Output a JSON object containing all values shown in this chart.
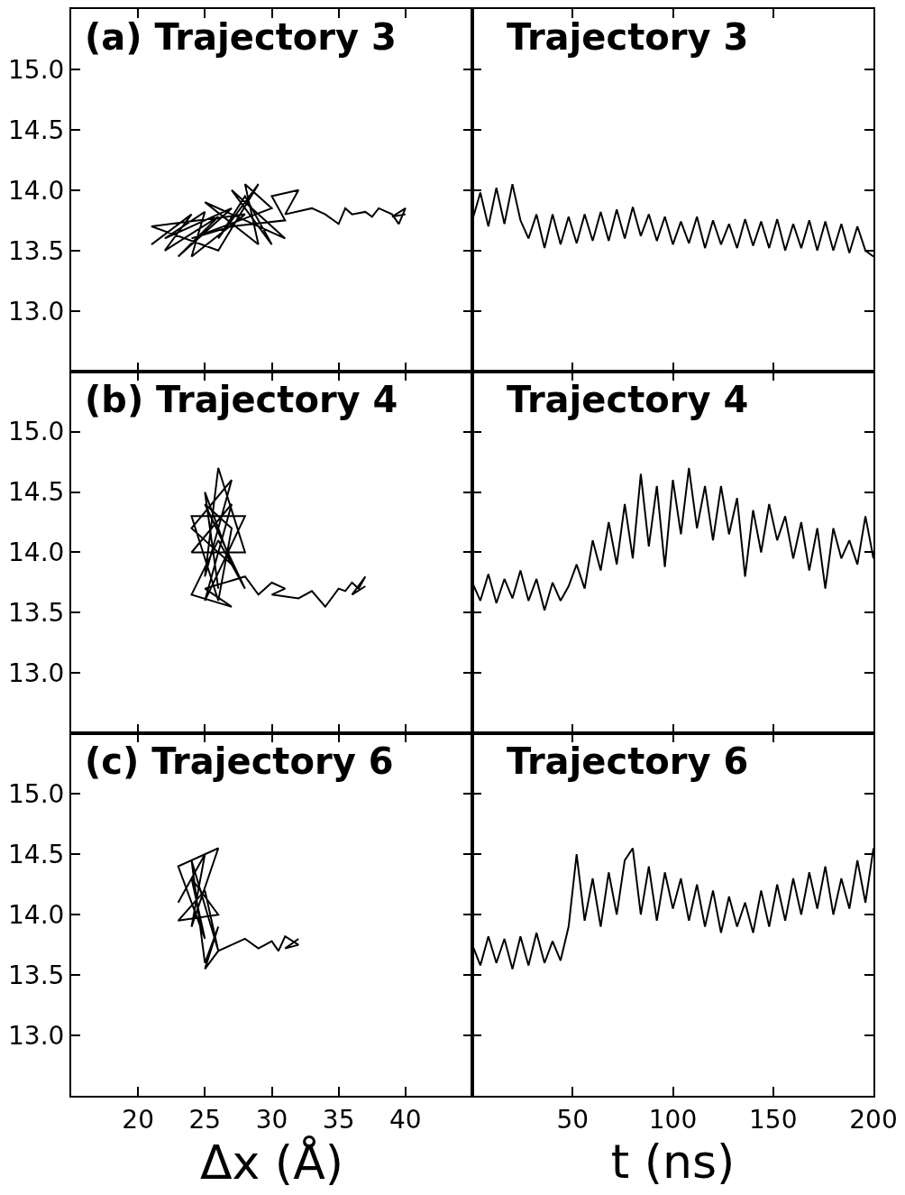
{
  "chart_data": [
    {
      "type": "line",
      "title": "(a) Trajectory 3",
      "color": "#000000",
      "xlim": [
        15,
        45
      ],
      "xticks": [
        {
          "value": 20,
          "label": null
        },
        {
          "value": 25,
          "label": null
        },
        {
          "value": 30,
          "label": null
        },
        {
          "value": 35,
          "label": null
        },
        {
          "value": 40,
          "label": null
        }
      ],
      "ylim": [
        12.5,
        15.5
      ],
      "yticks": [
        {
          "value": 13,
          "label": "13.0"
        },
        {
          "value": 13.5,
          "label": "13.5"
        },
        {
          "value": 14,
          "label": "14.0"
        },
        {
          "value": 14.5,
          "label": "14.5"
        },
        {
          "value": 15,
          "label": "15.0"
        }
      ],
      "tick_labels": "y",
      "x": [
        21,
        24,
        22,
        26,
        23,
        27,
        22,
        25,
        24,
        28,
        21,
        26,
        29,
        26,
        28,
        30,
        27,
        31,
        25,
        29,
        28,
        30,
        24,
        27,
        31,
        30,
        32,
        31,
        33,
        34,
        35,
        35.5,
        36,
        37,
        37.5,
        38,
        39,
        39.5,
        40,
        39,
        40
      ],
      "values": [
        13.55,
        13.8,
        13.5,
        13.78,
        13.45,
        13.85,
        13.6,
        13.82,
        13.45,
        13.8,
        13.7,
        13.5,
        14.05,
        13.6,
        13.95,
        13.55,
        14.0,
        13.6,
        13.9,
        13.55,
        14.05,
        13.85,
        13.6,
        13.7,
        13.75,
        13.95,
        14.0,
        13.8,
        13.85,
        13.8,
        13.72,
        13.85,
        13.8,
        13.82,
        13.78,
        13.85,
        13.8,
        13.72,
        13.85,
        13.78,
        13.8
      ]
    },
    {
      "type": "line",
      "title": "Trajectory 3",
      "color": "#000000",
      "xlim": [
        0,
        200
      ],
      "xticks": [
        {
          "value": 50,
          "label": null
        },
        {
          "value": 100,
          "label": null
        },
        {
          "value": 150,
          "label": null
        },
        {
          "value": 200,
          "label": null
        }
      ],
      "ylim": [
        12.5,
        15.5
      ],
      "yticks": [
        {
          "value": 13,
          "label": null
        },
        {
          "value": 13.5,
          "label": null
        },
        {
          "value": 14,
          "label": null
        },
        {
          "value": 14.5,
          "label": null
        },
        {
          "value": 15,
          "label": null
        }
      ],
      "tick_labels": false,
      "x": [
        0,
        4,
        8,
        12,
        16,
        20,
        24,
        28,
        32,
        36,
        40,
        44,
        48,
        52,
        56,
        60,
        64,
        68,
        72,
        76,
        80,
        84,
        88,
        92,
        96,
        100,
        104,
        108,
        112,
        116,
        120,
        124,
        128,
        132,
        136,
        140,
        144,
        148,
        152,
        156,
        160,
        164,
        168,
        172,
        176,
        180,
        184,
        188,
        192,
        196,
        200
      ],
      "values": [
        13.75,
        13.98,
        13.7,
        14.02,
        13.72,
        14.05,
        13.75,
        13.6,
        13.8,
        13.52,
        13.8,
        13.55,
        13.78,
        13.56,
        13.8,
        13.58,
        13.82,
        13.58,
        13.84,
        13.6,
        13.86,
        13.62,
        13.8,
        13.58,
        13.78,
        13.55,
        13.74,
        13.56,
        13.78,
        13.52,
        13.75,
        13.55,
        13.72,
        13.52,
        13.76,
        13.54,
        13.74,
        13.52,
        13.76,
        13.5,
        13.72,
        13.52,
        13.75,
        13.5,
        13.74,
        13.5,
        13.72,
        13.48,
        13.7,
        13.5,
        13.45
      ]
    },
    {
      "type": "line",
      "title": "(b) Trajectory 4",
      "color": "#000000",
      "xlim": [
        15,
        45
      ],
      "xticks": [
        {
          "value": 20,
          "label": null
        },
        {
          "value": 25,
          "label": null
        },
        {
          "value": 30,
          "label": null
        },
        {
          "value": 35,
          "label": null
        },
        {
          "value": 40,
          "label": null
        }
      ],
      "ylim": [
        12.5,
        15.5
      ],
      "yticks": [
        {
          "value": 13,
          "label": "13.0"
        },
        {
          "value": 13.5,
          "label": "13.5"
        },
        {
          "value": 14,
          "label": "14.0"
        },
        {
          "value": 14.5,
          "label": "14.5"
        },
        {
          "value": 15,
          "label": "15.0"
        }
      ],
      "tick_labels": "y",
      "x": [
        26,
        25,
        27,
        24,
        27,
        25,
        26,
        28,
        24,
        27,
        25,
        28,
        24,
        26,
        27,
        25,
        28,
        26,
        24,
        27,
        25,
        28,
        29,
        30,
        31,
        30,
        32,
        33,
        34,
        35,
        35.5,
        36,
        36.5,
        37,
        36,
        37
      ],
      "values": [
        13.7,
        14.5,
        13.9,
        14.2,
        14.6,
        13.8,
        14.7,
        14.0,
        14.0,
        14.4,
        13.6,
        14.3,
        14.3,
        13.6,
        14.2,
        14.4,
        13.7,
        14.1,
        13.65,
        13.55,
        13.7,
        13.8,
        13.65,
        13.75,
        13.7,
        13.65,
        13.62,
        13.68,
        13.55,
        13.7,
        13.68,
        13.75,
        13.7,
        13.8,
        13.65,
        13.72
      ]
    },
    {
      "type": "line",
      "title": "Trajectory 4",
      "color": "#000000",
      "xlim": [
        0,
        200
      ],
      "xticks": [
        {
          "value": 50,
          "label": null
        },
        {
          "value": 100,
          "label": null
        },
        {
          "value": 150,
          "label": null
        },
        {
          "value": 200,
          "label": null
        }
      ],
      "ylim": [
        12.5,
        15.5
      ],
      "yticks": [
        {
          "value": 13,
          "label": null
        },
        {
          "value": 13.5,
          "label": null
        },
        {
          "value": 14,
          "label": null
        },
        {
          "value": 14.5,
          "label": null
        },
        {
          "value": 15,
          "label": null
        }
      ],
      "tick_labels": false,
      "x": [
        0,
        4,
        8,
        12,
        16,
        20,
        24,
        28,
        32,
        36,
        40,
        44,
        48,
        52,
        56,
        60,
        64,
        68,
        72,
        76,
        80,
        84,
        88,
        92,
        96,
        100,
        104,
        108,
        112,
        116,
        120,
        124,
        128,
        132,
        136,
        140,
        144,
        148,
        152,
        156,
        160,
        164,
        168,
        172,
        176,
        180,
        184,
        188,
        192,
        196,
        200
      ],
      "values": [
        13.75,
        13.6,
        13.82,
        13.58,
        13.78,
        13.62,
        13.85,
        13.6,
        13.78,
        13.52,
        13.75,
        13.6,
        13.72,
        13.9,
        13.7,
        14.1,
        13.85,
        14.25,
        13.9,
        14.4,
        13.95,
        14.65,
        14.05,
        14.55,
        13.88,
        14.6,
        14.15,
        14.7,
        14.2,
        14.55,
        14.1,
        14.55,
        14.15,
        14.45,
        13.8,
        14.35,
        14.0,
        14.4,
        14.1,
        14.3,
        13.95,
        14.25,
        13.85,
        14.2,
        13.7,
        14.2,
        13.95,
        14.1,
        13.9,
        14.3,
        13.95
      ]
    },
    {
      "type": "line",
      "title": "(c) Trajectory 6",
      "xlabel": "Δx (Å)",
      "color": "#000000",
      "xlim": [
        15,
        45
      ],
      "xticks": [
        20,
        25,
        30,
        35,
        40
      ],
      "ylim": [
        12.5,
        15.5
      ],
      "yticks": [
        {
          "value": 13,
          "label": "13.0"
        },
        {
          "value": 13.5,
          "label": "13.5"
        },
        {
          "value": 14,
          "label": "14.0"
        },
        {
          "value": 14.5,
          "label": "14.5"
        },
        {
          "value": 15,
          "label": "15.0"
        }
      ],
      "x": [
        23,
        25,
        24,
        26,
        23,
        25,
        24,
        26,
        23,
        25,
        26,
        24,
        25,
        26,
        25,
        26,
        27,
        28,
        29,
        30,
        30.5,
        31,
        32,
        31,
        32
      ],
      "values": [
        14.1,
        14.5,
        13.9,
        14.55,
        14.4,
        13.8,
        14.3,
        14.0,
        13.95,
        14.2,
        13.7,
        14.45,
        13.6,
        13.9,
        13.55,
        13.7,
        13.75,
        13.8,
        13.72,
        13.78,
        13.7,
        13.82,
        13.75,
        13.72,
        13.8
      ]
    },
    {
      "type": "line",
      "title": "Trajectory 6",
      "xlabel": "t (ns)",
      "color": "#000000",
      "xlim": [
        0,
        200
      ],
      "xticks": [
        50,
        100,
        150,
        200
      ],
      "ylim": [
        12.5,
        15.5
      ],
      "yticks": [
        {
          "value": 13,
          "label": null
        },
        {
          "value": 13.5,
          "label": null
        },
        {
          "value": 14,
          "label": null
        },
        {
          "value": 14.5,
          "label": null
        },
        {
          "value": 15,
          "label": null
        }
      ],
      "tick_labels": "x",
      "x": [
        0,
        4,
        8,
        12,
        16,
        20,
        24,
        28,
        32,
        36,
        40,
        44,
        48,
        52,
        56,
        60,
        64,
        68,
        72,
        76,
        80,
        84,
        88,
        92,
        96,
        100,
        104,
        108,
        112,
        116,
        120,
        124,
        128,
        132,
        136,
        140,
        144,
        148,
        152,
        156,
        160,
        164,
        168,
        172,
        176,
        180,
        184,
        188,
        192,
        196,
        200
      ],
      "values": [
        13.75,
        13.58,
        13.82,
        13.6,
        13.8,
        13.55,
        13.82,
        13.58,
        13.85,
        13.6,
        13.78,
        13.62,
        13.9,
        14.5,
        13.95,
        14.3,
        13.9,
        14.35,
        14.0,
        14.45,
        14.55,
        14.0,
        14.4,
        13.95,
        14.35,
        14.05,
        14.3,
        13.95,
        14.25,
        13.9,
        14.2,
        13.85,
        14.15,
        13.9,
        14.1,
        13.85,
        14.2,
        13.9,
        14.25,
        13.95,
        14.3,
        14.0,
        14.35,
        14.05,
        14.4,
        14.0,
        14.3,
        14.05,
        14.45,
        14.1,
        14.55
      ]
    }
  ]
}
